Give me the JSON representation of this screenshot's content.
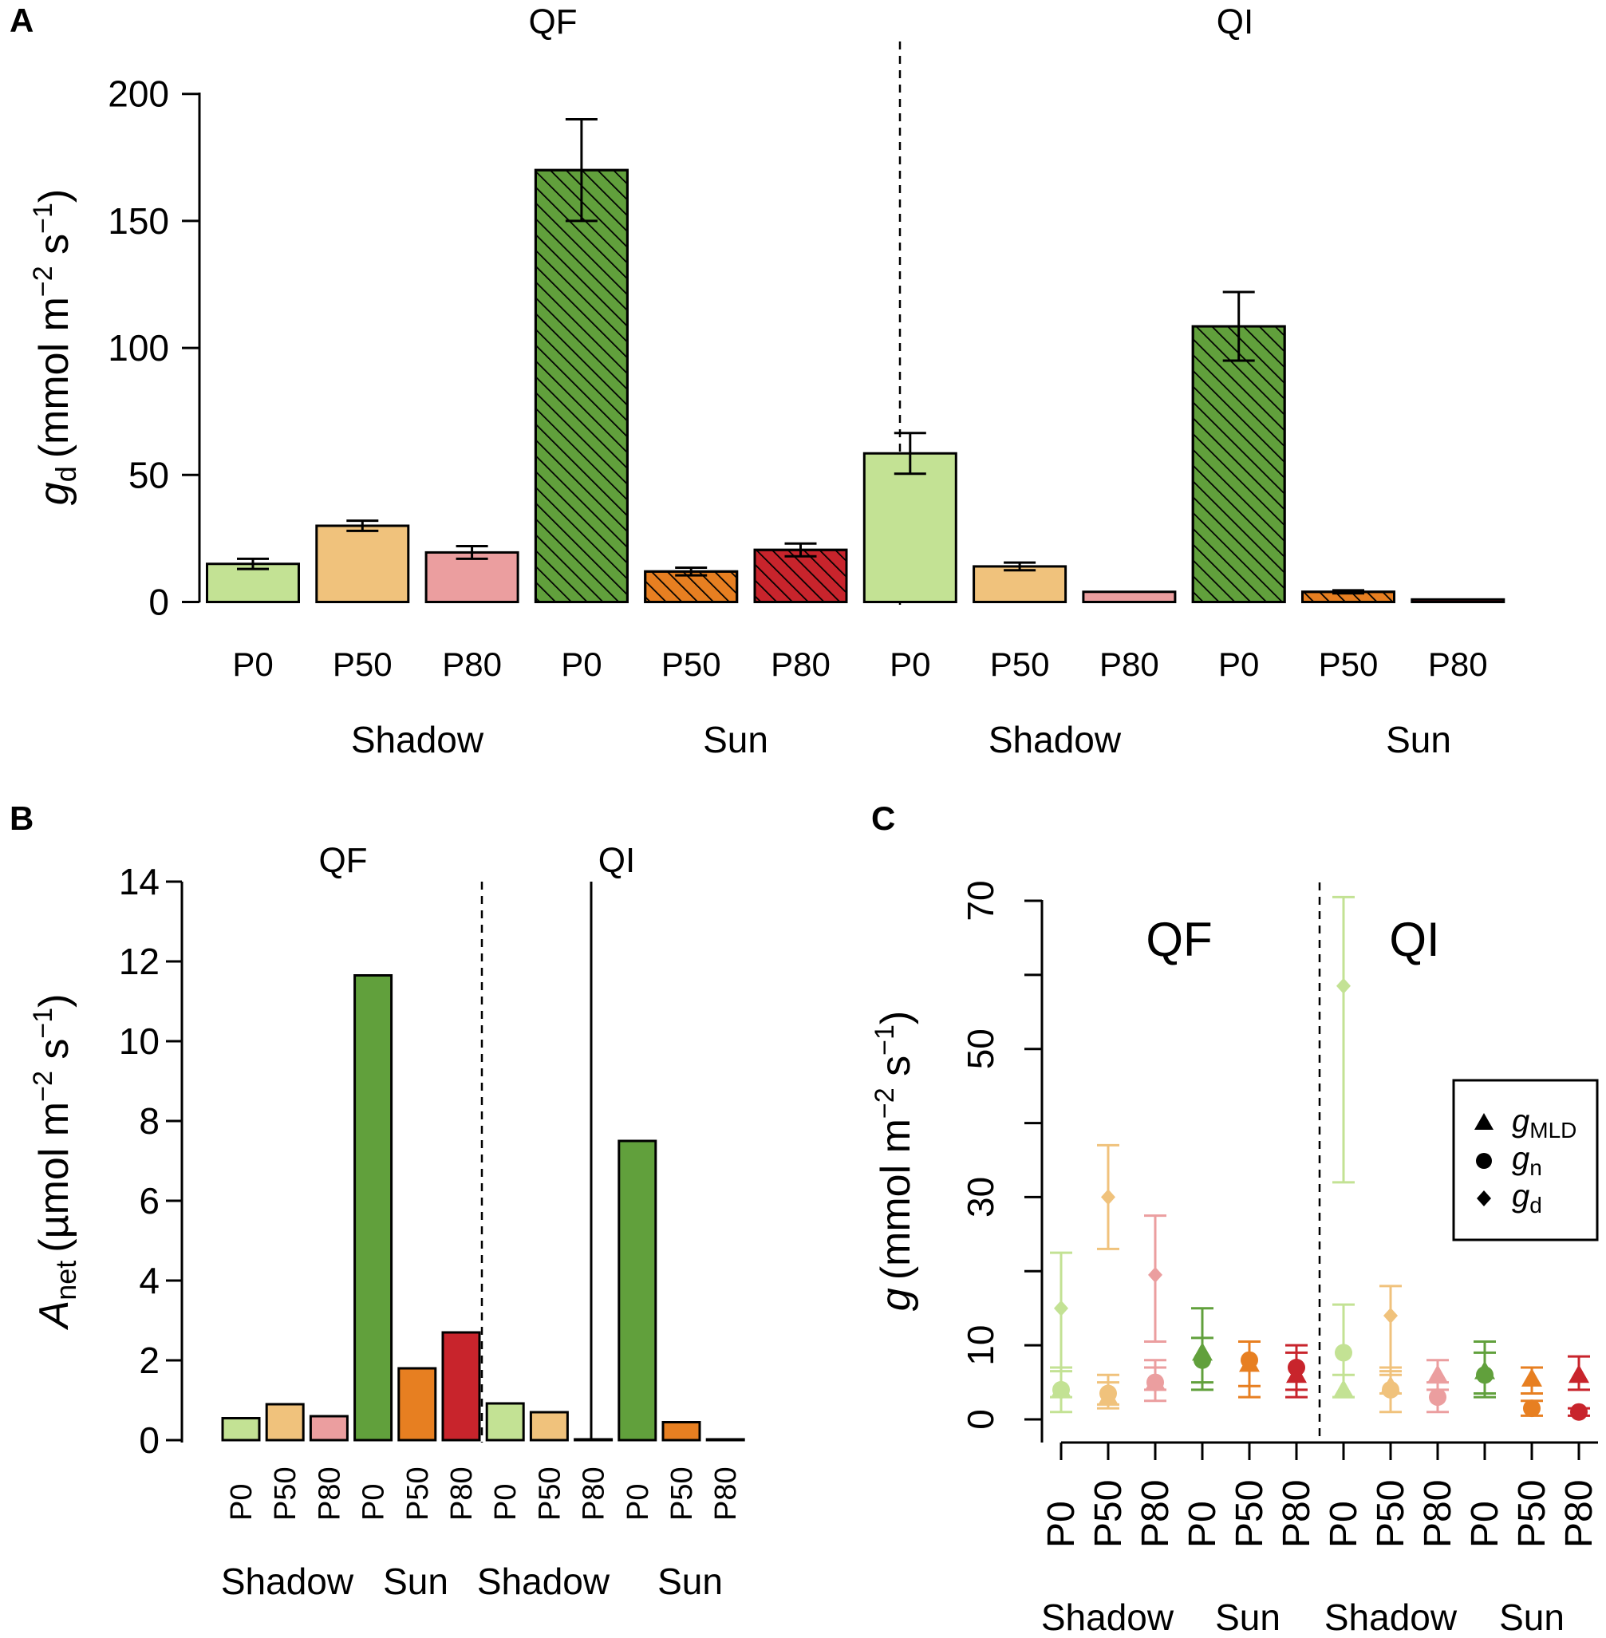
{
  "colors": {
    "light_green": "#c3e294",
    "light_orange": "#f0c27c",
    "light_pink": "#eb9e9f",
    "green": "#61a03c",
    "orange": "#e77f21",
    "red": "#c8242c"
  },
  "chart_data": [
    {
      "panel": "A",
      "type": "bar",
      "groups": [
        "QF",
        "QI"
      ],
      "categories": [
        "P0",
        "P50",
        "P80",
        "P0",
        "P50",
        "P80",
        "P0",
        "P50",
        "P80",
        "P0",
        "P50",
        "P80"
      ],
      "conditions": [
        "Shadow",
        "Sun",
        "Shadow",
        "Sun"
      ],
      "ylabel": {
        "main": "g",
        "sub": "d",
        "unit_pre": "(mmol m",
        "exp1": "−2",
        "unit_mid": " s",
        "exp2": "−1",
        "unit_post": ")"
      },
      "ylim": [
        0,
        200
      ],
      "yticks": [
        "0",
        "50",
        "100",
        "150",
        "200"
      ],
      "values": [
        15,
        30,
        19.5,
        170,
        12,
        20.5,
        58.5,
        14,
        4,
        108.5,
        4,
        1
      ],
      "errors": [
        2,
        2,
        2.5,
        20,
        1.5,
        2.5,
        8,
        1.5,
        0.5,
        13.5,
        0.6,
        0.3
      ],
      "color_keys": [
        "light_green",
        "light_orange",
        "light_pink",
        "green",
        "orange",
        "red",
        "light_green",
        "light_orange",
        "light_pink",
        "green",
        "orange",
        "red"
      ],
      "hatched": [
        false,
        false,
        false,
        true,
        true,
        true,
        false,
        false,
        false,
        true,
        true,
        false
      ]
    },
    {
      "panel": "B",
      "type": "bar",
      "groups": [
        "QF",
        "QI"
      ],
      "categories": [
        "P0",
        "P50",
        "P80",
        "P0",
        "P50",
        "P80",
        "P0",
        "P50",
        "P80",
        "P0",
        "P50",
        "P80"
      ],
      "conditions": [
        "Shadow",
        "Sun",
        "Shadow",
        "Sun"
      ],
      "ylabel": {
        "main": "A",
        "sub": "net",
        "unit_pre": "(µmol m",
        "exp1": "−2",
        "unit_mid": " s",
        "exp2": "−1",
        "unit_post": ")"
      },
      "ylim": [
        0,
        14
      ],
      "yticks": [
        "0",
        "2",
        "4",
        "6",
        "8",
        "10",
        "12",
        "14"
      ],
      "values": [
        0.55,
        0.9,
        0.6,
        11.65,
        1.8,
        2.7,
        0.92,
        0.7,
        0.02,
        7.5,
        0.45,
        0.02
      ],
      "color_keys": [
        "light_green",
        "light_orange",
        "light_pink",
        "green",
        "orange",
        "red",
        "light_green",
        "light_orange",
        "light_pink",
        "green",
        "orange",
        "red"
      ]
    },
    {
      "panel": "C",
      "type": "scatter",
      "groups": [
        "QF",
        "QI"
      ],
      "categories": [
        "P0",
        "P50",
        "P80",
        "P0",
        "P50",
        "P80",
        "P0",
        "P50",
        "P80",
        "P0",
        "P50",
        "P80"
      ],
      "conditions": [
        "Shadow",
        "Sun",
        "Shadow",
        "Sun"
      ],
      "ylabel": {
        "main": "g",
        "unit_pre": "(mmol m",
        "exp1": "−2",
        "unit_mid": " s",
        "exp2": "−1",
        "unit_post": ")"
      },
      "ylim": [
        -2,
        72
      ],
      "yticks": [
        "0",
        "10",
        "30",
        "50",
        "70"
      ],
      "color_keys": [
        "light_green",
        "light_orange",
        "light_pink",
        "green",
        "orange",
        "red",
        "light_green",
        "light_orange",
        "light_pink",
        "green",
        "orange",
        "red"
      ],
      "legend": {
        "position": "right",
        "entries": [
          {
            "symbol": "triangle",
            "main": "g",
            "sub": "MLD"
          },
          {
            "symbol": "circle",
            "main": "g",
            "sub": "n"
          },
          {
            "symbol": "diamond",
            "main": "g",
            "sub": "d"
          }
        ]
      },
      "series": [
        {
          "name": "gMLD",
          "marker": "triangle",
          "values": [
            4,
            3,
            5,
            9,
            7.5,
            6,
            4,
            4.5,
            6,
            6.5,
            5.5,
            6
          ],
          "err_low": [
            1,
            1,
            1,
            5,
            3,
            2,
            1,
            1,
            2,
            3,
            2,
            2
          ],
          "err_high": [
            2.5,
            2,
            2,
            6,
            3,
            3,
            2,
            2,
            2,
            4,
            1.5,
            2.5
          ]
        },
        {
          "name": "gn",
          "marker": "circle",
          "values": [
            4,
            3.5,
            5,
            8,
            8,
            7,
            9,
            4,
            3,
            6,
            1.5,
            1
          ],
          "err_low": [
            3,
            2,
            2.5,
            3,
            5,
            4,
            6,
            3,
            2,
            3,
            1,
            0.5
          ],
          "err_high": [
            3,
            2.5,
            3,
            3,
            2.5,
            3,
            6.5,
            3,
            2,
            3,
            1,
            0.5
          ]
        },
        {
          "name": "gd",
          "marker": "diamond",
          "values": [
            15,
            30,
            19.5,
            0,
            0,
            0,
            58.5,
            14,
            0,
            0,
            0,
            0
          ],
          "err_low": [
            8,
            7,
            9,
            0,
            0,
            0,
            26.5,
            8,
            0,
            0,
            0,
            0
          ],
          "err_high": [
            7.5,
            7,
            8,
            0,
            0,
            0,
            12,
            4,
            0,
            0,
            0,
            0
          ],
          "shown": [
            true,
            true,
            true,
            false,
            false,
            false,
            true,
            true,
            false,
            false,
            false,
            false
          ]
        }
      ]
    }
  ],
  "panel_labels": {
    "a": "A",
    "b": "B",
    "c": "C"
  }
}
